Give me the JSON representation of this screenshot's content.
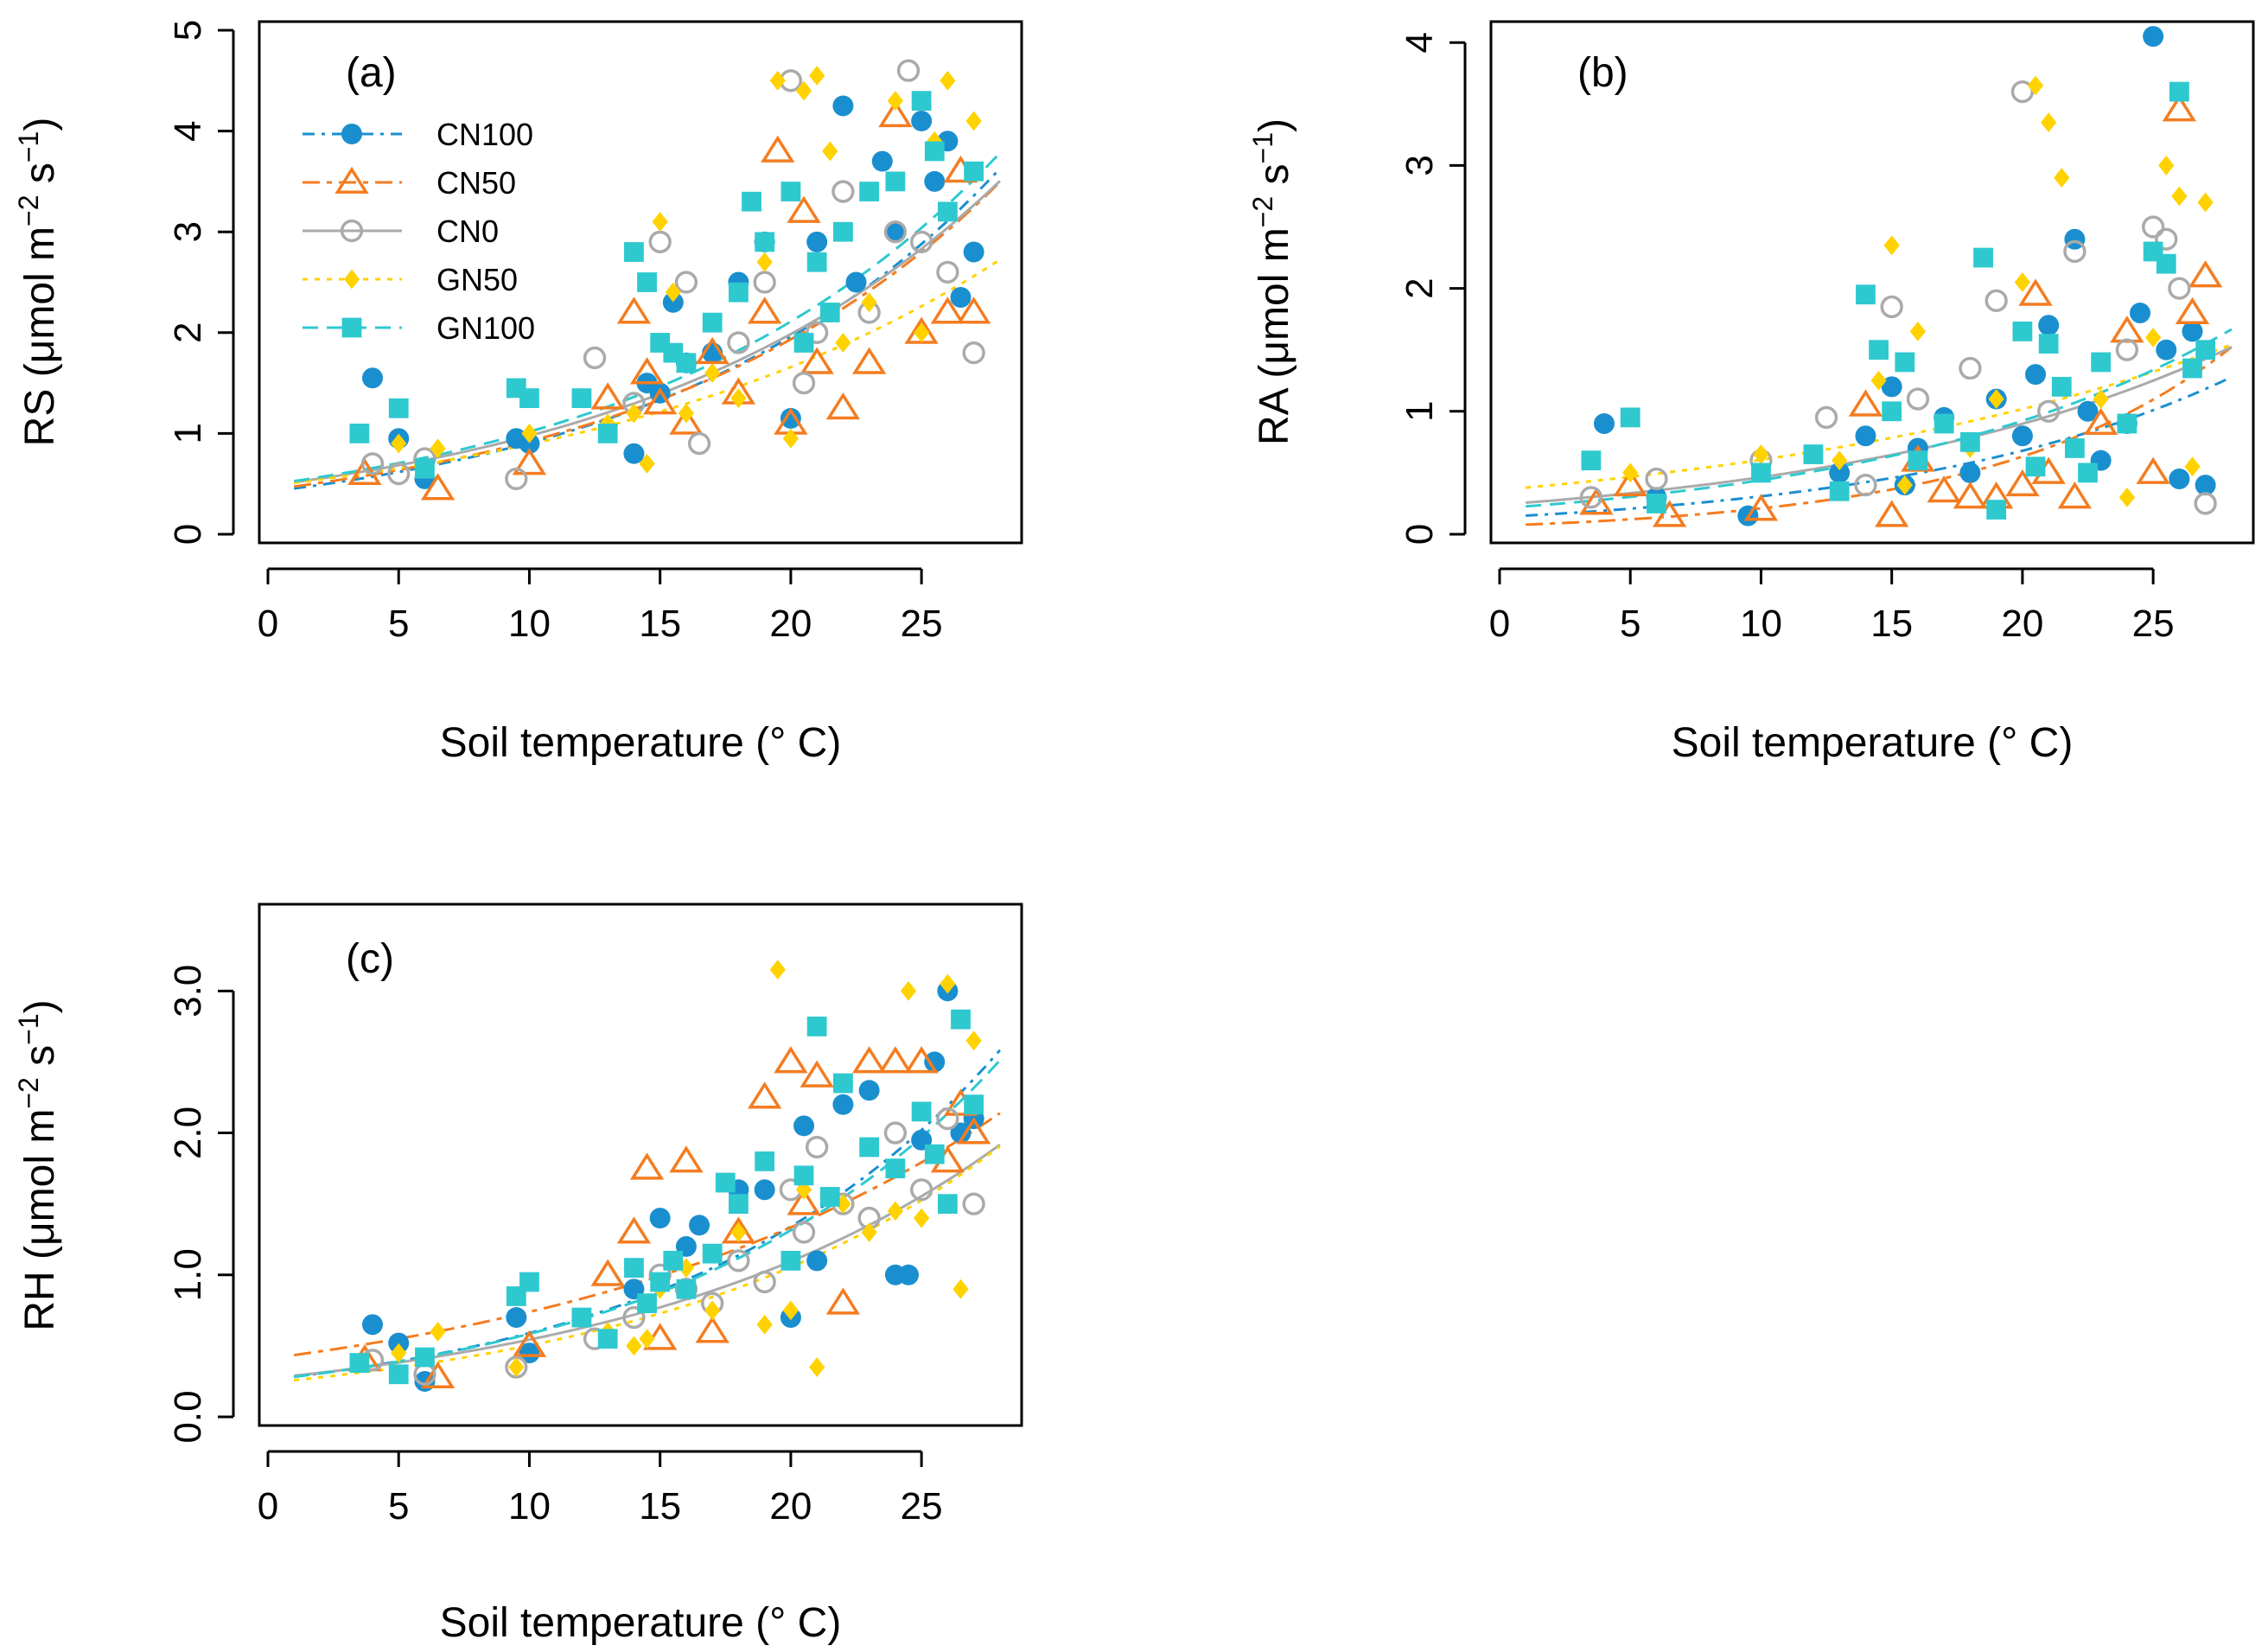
{
  "series_styles": [
    {
      "name": "CN100",
      "color": "#1a8fcf",
      "marker": "circle-filled",
      "dash": "14,8,4,8"
    },
    {
      "name": "CN50",
      "color": "#f47c20",
      "marker": "triangle-open",
      "dash": "20,8,6,8"
    },
    {
      "name": "CN0",
      "color": "#aaaaaa",
      "marker": "circle-open",
      "dash": ""
    },
    {
      "name": "GN50",
      "color": "#ffd200",
      "marker": "diamond-filled",
      "dash": "6,8"
    },
    {
      "name": "GN100",
      "color": "#2ec9cf",
      "marker": "square-filled",
      "dash": "18,10"
    }
  ],
  "chart_data": [
    {
      "type": "scatter",
      "panel": "(a)",
      "title": "",
      "xlabel": "Soil temperature (° C)",
      "ylabel_main": "RS (μmol m",
      "ylabel_sup1": "−2",
      "ylabel_mid": " s",
      "ylabel_sup2": "−1",
      "ylabel_end": ")",
      "xlim": [
        0,
        28.5
      ],
      "ylim": [
        0,
        5
      ],
      "xticks": [
        "0",
        "5",
        "10",
        "15",
        "20",
        "25"
      ],
      "xtick_values": [
        0,
        5,
        10,
        15,
        20,
        25
      ],
      "yticks": [
        "0",
        "1",
        "2",
        "3",
        "4",
        "5"
      ],
      "ytick_values": [
        0,
        1,
        2,
        3,
        4,
        5
      ],
      "legend": {
        "position": "top-left",
        "entries": [
          "CN100",
          "CN50",
          "CN0",
          "GN50",
          "GN100"
        ]
      },
      "fits": [
        {
          "name": "CN100",
          "a": 0.42,
          "b": 0.077
        },
        {
          "name": "CN50",
          "a": 0.44,
          "b": 0.074
        },
        {
          "name": "CN0",
          "a": 0.48,
          "b": 0.071
        },
        {
          "name": "GN50",
          "a": 0.48,
          "b": 0.062
        },
        {
          "name": "GN100",
          "a": 0.49,
          "b": 0.073
        }
      ],
      "series": [
        {
          "name": "CN100",
          "x": [
            4,
            5,
            6,
            9.5,
            10,
            14,
            14.5,
            15,
            15.5,
            16,
            17,
            18,
            19,
            20,
            21,
            22,
            22.5,
            23.5,
            24,
            25,
            25.5,
            26,
            26.5,
            27
          ],
          "y": [
            1.55,
            0.95,
            0.55,
            0.95,
            0.9,
            0.8,
            1.5,
            1.4,
            2.3,
            1.7,
            1.8,
            2.5,
            2.9,
            1.15,
            2.9,
            4.25,
            2.5,
            3.7,
            3.0,
            4.1,
            3.5,
            3.9,
            2.35,
            2.8
          ]
        },
        {
          "name": "CN50",
          "x": [
            3.7,
            6.5,
            10,
            13,
            14,
            14.5,
            15,
            16,
            17,
            18,
            19,
            19.5,
            20,
            20.5,
            21,
            22,
            23,
            24,
            25,
            26,
            26.5,
            27
          ],
          "y": [
            0.6,
            0.45,
            0.7,
            1.35,
            2.2,
            1.6,
            1.3,
            1.1,
            1.8,
            1.4,
            2.2,
            3.8,
            1.1,
            3.2,
            1.7,
            1.25,
            1.7,
            4.15,
            2.0,
            2.2,
            3.6,
            2.2
          ]
        },
        {
          "name": "CN0",
          "x": [
            4,
            5,
            6,
            9.5,
            12.5,
            14,
            15,
            16,
            16.5,
            18,
            19,
            20,
            20.5,
            21,
            22,
            23,
            24,
            24.5,
            25,
            26,
            27
          ],
          "y": [
            0.7,
            0.6,
            0.75,
            0.55,
            1.75,
            1.3,
            2.9,
            2.5,
            0.9,
            1.9,
            2.5,
            4.5,
            1.5,
            2.0,
            3.4,
            2.2,
            3.0,
            4.6,
            2.9,
            2.6,
            1.8
          ]
        },
        {
          "name": "GN50",
          "x": [
            5,
            6.5,
            10,
            13,
            14,
            14.5,
            15,
            15.5,
            16,
            17,
            18,
            19,
            19.5,
            20,
            20.5,
            21,
            21.5,
            22,
            23,
            24,
            25,
            25.5,
            26,
            27
          ],
          "y": [
            0.9,
            0.85,
            1.0,
            1.1,
            1.2,
            0.7,
            3.1,
            2.4,
            1.2,
            1.6,
            1.35,
            2.7,
            4.5,
            0.95,
            4.4,
            4.55,
            3.8,
            1.9,
            2.3,
            4.3,
            2.0,
            3.9,
            4.5,
            4.1
          ]
        },
        {
          "name": "GN100",
          "x": [
            3.5,
            5,
            6,
            9.5,
            10,
            12,
            13,
            14,
            14.5,
            15,
            15.5,
            16,
            17,
            18,
            18.5,
            19,
            20,
            20.5,
            21,
            21.5,
            22,
            23,
            24,
            25,
            25.5,
            26,
            27
          ],
          "y": [
            1.0,
            1.25,
            0.65,
            1.45,
            1.35,
            1.35,
            1.0,
            2.8,
            2.5,
            1.9,
            1.8,
            1.7,
            2.1,
            2.4,
            3.3,
            2.9,
            3.4,
            1.9,
            2.7,
            2.2,
            3.0,
            3.4,
            3.5,
            4.3,
            3.8,
            3.2,
            3.6
          ]
        }
      ]
    },
    {
      "type": "scatter",
      "panel": "(b)",
      "title": "",
      "xlabel": "Soil temperature (° C)",
      "ylabel_main": "RA (μmol m",
      "ylabel_sup1": "−2",
      "ylabel_mid": " s",
      "ylabel_sup2": "−1",
      "ylabel_end": ")",
      "xlim": [
        0,
        28.5
      ],
      "ylim": [
        0,
        4.1
      ],
      "xticks": [
        "0",
        "5",
        "10",
        "15",
        "20",
        "25"
      ],
      "xtick_values": [
        0,
        5,
        10,
        15,
        20,
        25
      ],
      "yticks": [
        "0",
        "1",
        "2",
        "3",
        "4"
      ],
      "ytick_values": [
        0,
        1,
        2,
        3,
        4
      ],
      "fits": [
        {
          "name": "CN100",
          "a": 0.14,
          "b": 0.079
        },
        {
          "name": "CN50",
          "a": 0.07,
          "b": 0.11
        },
        {
          "name": "CN0",
          "a": 0.24,
          "b": 0.066
        },
        {
          "name": "GN50",
          "a": 0.36,
          "b": 0.052
        },
        {
          "name": "GN100",
          "a": 0.21,
          "b": 0.074
        }
      ],
      "series": [
        {
          "name": "CN100",
          "x": [
            4,
            6,
            9.5,
            13,
            14,
            15,
            15.5,
            16,
            17,
            18,
            19,
            20,
            20.5,
            21,
            22,
            22.5,
            23,
            24,
            24.5,
            25,
            25.5,
            26,
            26.5,
            27
          ],
          "y": [
            0.9,
            0.3,
            0.15,
            0.5,
            0.8,
            1.2,
            0.4,
            0.7,
            0.95,
            0.5,
            1.1,
            0.8,
            1.3,
            1.7,
            2.4,
            1.0,
            0.6,
            0.9,
            1.8,
            4.05,
            1.5,
            0.45,
            1.65,
            0.4
          ]
        },
        {
          "name": "CN50",
          "x": [
            3.7,
            5,
            6.5,
            10,
            14,
            15,
            16,
            17,
            18,
            19,
            20,
            20.5,
            21,
            22,
            23,
            24,
            25,
            26,
            26.5,
            27
          ],
          "y": [
            0.25,
            0.4,
            0.15,
            0.2,
            1.05,
            0.15,
            0.6,
            0.35,
            0.3,
            0.3,
            0.4,
            1.95,
            0.5,
            0.3,
            0.9,
            1.65,
            0.5,
            3.45,
            1.8,
            2.1
          ]
        },
        {
          "name": "CN0",
          "x": [
            3.5,
            6,
            10,
            12.5,
            14,
            15,
            16,
            18,
            19,
            20,
            21,
            22,
            24,
            25,
            25.5,
            26,
            27
          ],
          "y": [
            0.3,
            0.45,
            0.6,
            0.95,
            0.4,
            1.85,
            1.1,
            1.35,
            1.9,
            3.6,
            1.0,
            2.3,
            1.5,
            2.5,
            2.4,
            2.0,
            0.25
          ]
        },
        {
          "name": "GN50",
          "x": [
            5,
            10,
            13,
            14.5,
            15,
            15.5,
            16,
            18,
            19,
            20,
            20.5,
            21,
            21.5,
            22,
            23,
            24,
            25,
            25.5,
            26,
            26.5,
            27
          ],
          "y": [
            0.5,
            0.65,
            0.6,
            1.25,
            2.35,
            0.4,
            1.65,
            0.7,
            1.1,
            2.05,
            3.65,
            3.35,
            2.9,
            0.7,
            1.1,
            0.3,
            1.6,
            3.0,
            2.75,
            0.55,
            2.7
          ]
        },
        {
          "name": "GN100",
          "x": [
            3.5,
            5,
            6,
            10,
            12,
            13,
            14,
            14.5,
            15,
            15.5,
            16,
            17,
            18,
            18.5,
            19,
            20,
            20.5,
            21,
            21.5,
            22,
            22.5,
            23,
            24,
            25,
            25.5,
            26,
            26.5,
            27
          ],
          "y": [
            0.6,
            0.95,
            0.25,
            0.5,
            0.65,
            0.35,
            1.95,
            1.5,
            1.0,
            1.4,
            0.6,
            0.9,
            0.75,
            2.25,
            0.2,
            1.65,
            0.55,
            1.55,
            1.2,
            0.7,
            0.5,
            1.4,
            0.9,
            2.3,
            2.2,
            3.6,
            1.35,
            1.5
          ]
        }
      ]
    },
    {
      "type": "scatter",
      "panel": "(c)",
      "title": "",
      "xlabel": "Soil temperature (° C)",
      "ylabel_main": "RH (μmol m",
      "ylabel_sup1": "−2",
      "ylabel_mid": " s",
      "ylabel_sup2": "−1",
      "ylabel_end": ")",
      "xlim": [
        0,
        28.5
      ],
      "ylim": [
        0,
        3.55
      ],
      "xticks": [
        "0",
        "5",
        "10",
        "15",
        "20",
        "25"
      ],
      "xtick_values": [
        0,
        5,
        10,
        15,
        20,
        25
      ],
      "yticks": [
        "0.0",
        "1.0",
        "2.0",
        "3.0"
      ],
      "ytick_values": [
        0,
        1,
        2,
        3
      ],
      "fits": [
        {
          "name": "CN100",
          "a": 0.26,
          "b": 0.082
        },
        {
          "name": "CN50",
          "a": 0.41,
          "b": 0.059
        },
        {
          "name": "CN0",
          "a": 0.27,
          "b": 0.07
        },
        {
          "name": "GN50",
          "a": 0.24,
          "b": 0.074
        },
        {
          "name": "GN100",
          "a": 0.26,
          "b": 0.081
        }
      ],
      "series": [
        {
          "name": "CN100",
          "x": [
            4,
            5,
            6,
            9.5,
            10,
            14,
            15,
            16,
            16.5,
            18,
            19,
            20,
            20.5,
            21,
            22,
            23,
            24,
            24.5,
            25,
            25.5,
            26,
            26.5,
            27
          ],
          "y": [
            0.65,
            0.52,
            0.25,
            0.7,
            0.45,
            0.9,
            1.4,
            1.2,
            1.35,
            1.6,
            1.6,
            0.7,
            2.05,
            1.1,
            2.2,
            2.3,
            1.0,
            1.0,
            1.95,
            2.5,
            3.0,
            2.0,
            2.1
          ]
        },
        {
          "name": "CN50",
          "x": [
            3.7,
            6.5,
            10,
            13,
            14,
            14.5,
            15,
            16,
            17,
            18,
            19,
            20,
            20.5,
            21,
            22,
            23,
            24,
            25,
            26,
            26.5,
            27
          ],
          "y": [
            0.4,
            0.28,
            0.5,
            1.0,
            1.3,
            1.75,
            0.55,
            1.8,
            0.6,
            1.3,
            2.25,
            2.5,
            1.5,
            2.4,
            0.8,
            2.5,
            2.5,
            2.5,
            1.8,
            2.2,
            2.0
          ]
        },
        {
          "name": "CN0",
          "x": [
            4,
            6,
            9.5,
            12.5,
            14,
            15,
            16,
            17,
            18,
            19,
            20,
            20.5,
            21,
            22,
            23,
            24,
            25,
            26,
            27
          ],
          "y": [
            0.4,
            0.3,
            0.35,
            0.55,
            0.7,
            1.0,
            0.9,
            0.8,
            1.1,
            0.95,
            1.6,
            1.3,
            1.9,
            1.5,
            1.4,
            2.0,
            1.6,
            2.1,
            1.5
          ]
        },
        {
          "name": "GN50",
          "x": [
            5,
            6.5,
            9.5,
            13,
            14,
            14.5,
            15,
            16,
            17,
            18,
            19,
            19.5,
            20,
            20.5,
            21,
            22,
            23,
            24,
            24.5,
            25,
            26,
            26.5,
            27
          ],
          "y": [
            0.45,
            0.6,
            0.35,
            0.6,
            0.5,
            0.55,
            0.9,
            1.05,
            0.75,
            1.3,
            0.65,
            3.15,
            0.75,
            1.6,
            0.35,
            1.5,
            1.3,
            1.45,
            3.0,
            1.4,
            3.05,
            0.9,
            2.65
          ]
        },
        {
          "name": "GN100",
          "x": [
            3.5,
            5,
            6,
            9.5,
            10,
            12,
            13,
            14,
            14.5,
            15,
            15.5,
            16,
            17,
            17.5,
            18,
            19,
            20,
            20.5,
            21,
            21.5,
            22,
            23,
            24,
            25,
            25.5,
            26,
            26.5,
            27
          ],
          "y": [
            0.38,
            0.3,
            0.42,
            0.85,
            0.95,
            0.7,
            0.55,
            1.05,
            0.8,
            0.95,
            1.1,
            0.9,
            1.15,
            1.65,
            1.5,
            1.8,
            1.1,
            1.7,
            2.75,
            1.55,
            2.35,
            1.9,
            1.75,
            2.15,
            1.85,
            1.5,
            2.8,
            2.2
          ]
        }
      ]
    }
  ]
}
